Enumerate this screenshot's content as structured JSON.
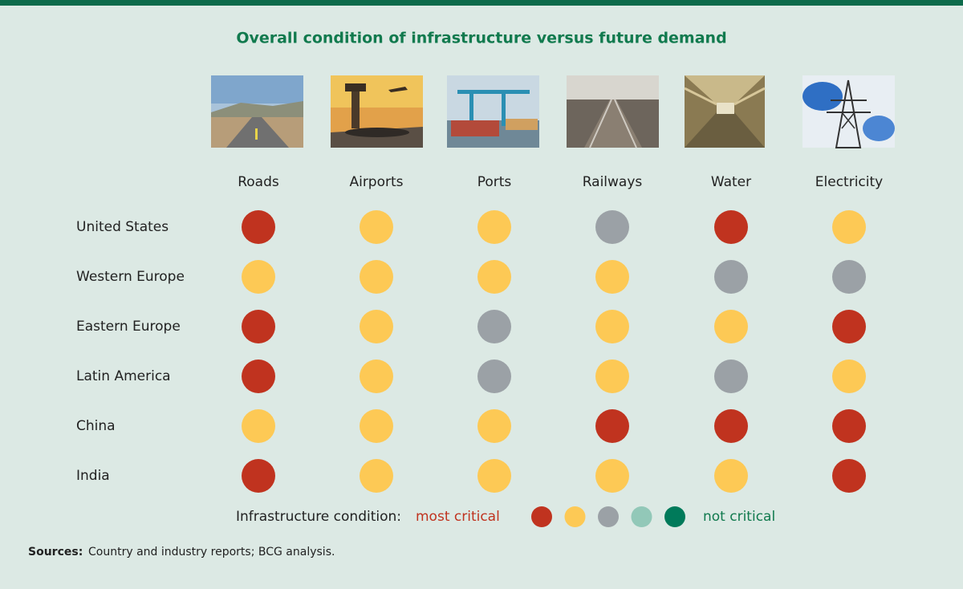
{
  "title": "Overall condition of infrastructure versus future demand",
  "columns": [
    "Roads",
    "Airports",
    "Ports",
    "Railways",
    "Water",
    "Electricity"
  ],
  "rows": [
    {
      "label": "United States",
      "cells": [
        "#c0331f",
        "#fdc955",
        "#fdc955",
        "#9ba1a6",
        "#c0331f",
        "#fdc955"
      ]
    },
    {
      "label": "Western Europe",
      "cells": [
        "#fdc955",
        "#fdc955",
        "#fdc955",
        "#fdc955",
        "#9ba1a6",
        "#9ba1a6"
      ]
    },
    {
      "label": "Eastern Europe",
      "cells": [
        "#c0331f",
        "#fdc955",
        "#9ba1a6",
        "#fdc955",
        "#fdc955",
        "#c0331f"
      ]
    },
    {
      "label": "Latin America",
      "cells": [
        "#c0331f",
        "#fdc955",
        "#9ba1a6",
        "#fdc955",
        "#9ba1a6",
        "#fdc955"
      ]
    },
    {
      "label": "China",
      "cells": [
        "#fdc955",
        "#fdc955",
        "#fdc955",
        "#c0331f",
        "#c0331f",
        "#c0331f"
      ]
    },
    {
      "label": "India",
      "cells": [
        "#c0331f",
        "#fdc955",
        "#fdc955",
        "#fdc955",
        "#fdc955",
        "#c0331f"
      ]
    }
  ],
  "legend": {
    "label": "Infrastructure condition:",
    "low": "most critical",
    "high": "not critical",
    "colors": [
      "#c0331f",
      "#fdc955",
      "#9ba1a6",
      "#92c8b8",
      "#007a5a"
    ]
  },
  "sources": {
    "label": "Sources:",
    "text": "Country and industry reports; BCG analysis."
  }
}
